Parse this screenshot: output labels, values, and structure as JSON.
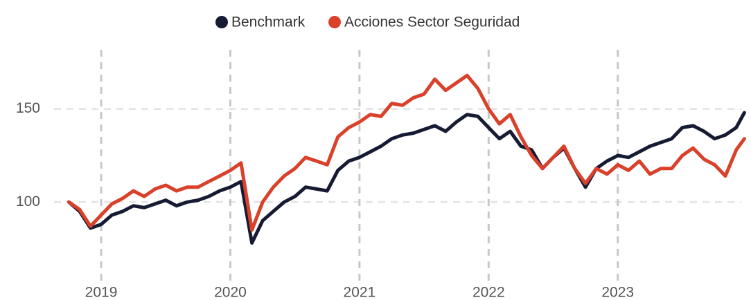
{
  "chart_data": {
    "type": "line",
    "x": [
      2018.75,
      2018.833,
      2018.917,
      2019.0,
      2019.083,
      2019.167,
      2019.25,
      2019.333,
      2019.417,
      2019.5,
      2019.583,
      2019.667,
      2019.75,
      2019.833,
      2019.917,
      2020.0,
      2020.083,
      2020.167,
      2020.25,
      2020.333,
      2020.417,
      2020.5,
      2020.583,
      2020.667,
      2020.75,
      2020.833,
      2020.917,
      2021.0,
      2021.083,
      2021.167,
      2021.25,
      2021.333,
      2021.417,
      2021.5,
      2021.583,
      2021.667,
      2021.75,
      2021.833,
      2021.917,
      2022.0,
      2022.083,
      2022.167,
      2022.25,
      2022.333,
      2022.417,
      2022.5,
      2022.583,
      2022.667,
      2022.75,
      2022.833,
      2022.917,
      2023.0,
      2023.083,
      2023.167,
      2023.25,
      2023.333,
      2023.417,
      2023.5,
      2023.583,
      2023.667,
      2023.75,
      2023.833,
      2023.917,
      2023.98
    ],
    "series": [
      {
        "name": "Benchmark",
        "color": "#161b33",
        "values": [
          100,
          95,
          86,
          88,
          93,
          95,
          98,
          97,
          99,
          101,
          98,
          100,
          101,
          103,
          106,
          108,
          111,
          78,
          90,
          95,
          100,
          103,
          108,
          107,
          106,
          117,
          122,
          124,
          127,
          130,
          134,
          136,
          137,
          139,
          141,
          138,
          143,
          147,
          146,
          140,
          134,
          138,
          130,
          128,
          118,
          124,
          129,
          118,
          108,
          118,
          122,
          125,
          124,
          127,
          130,
          132,
          134,
          140,
          141,
          138,
          134,
          136,
          140,
          148
        ]
      },
      {
        "name": "Acciones Sector Seguridad",
        "color": "#d9412b",
        "values": [
          100,
          96,
          87,
          93,
          99,
          102,
          106,
          103,
          107,
          109,
          106,
          108,
          108,
          111,
          114,
          117,
          121,
          85,
          100,
          108,
          114,
          118,
          124,
          122,
          120,
          135,
          140,
          143,
          147,
          146,
          153,
          152,
          156,
          158,
          166,
          160,
          164,
          168,
          161,
          150,
          142,
          147,
          135,
          125,
          118,
          124,
          130,
          118,
          110,
          118,
          115,
          120,
          117,
          122,
          115,
          118,
          118,
          125,
          129,
          123,
          120,
          114,
          128,
          134
        ]
      }
    ],
    "xlim": [
      2018.635,
      2024.01
    ],
    "xticks": [
      2019,
      2020,
      2021,
      2022,
      2023
    ],
    "ylim": [
      60,
      187
    ],
    "yticks": [
      100,
      150
    ],
    "grid": true,
    "legend": "top"
  }
}
